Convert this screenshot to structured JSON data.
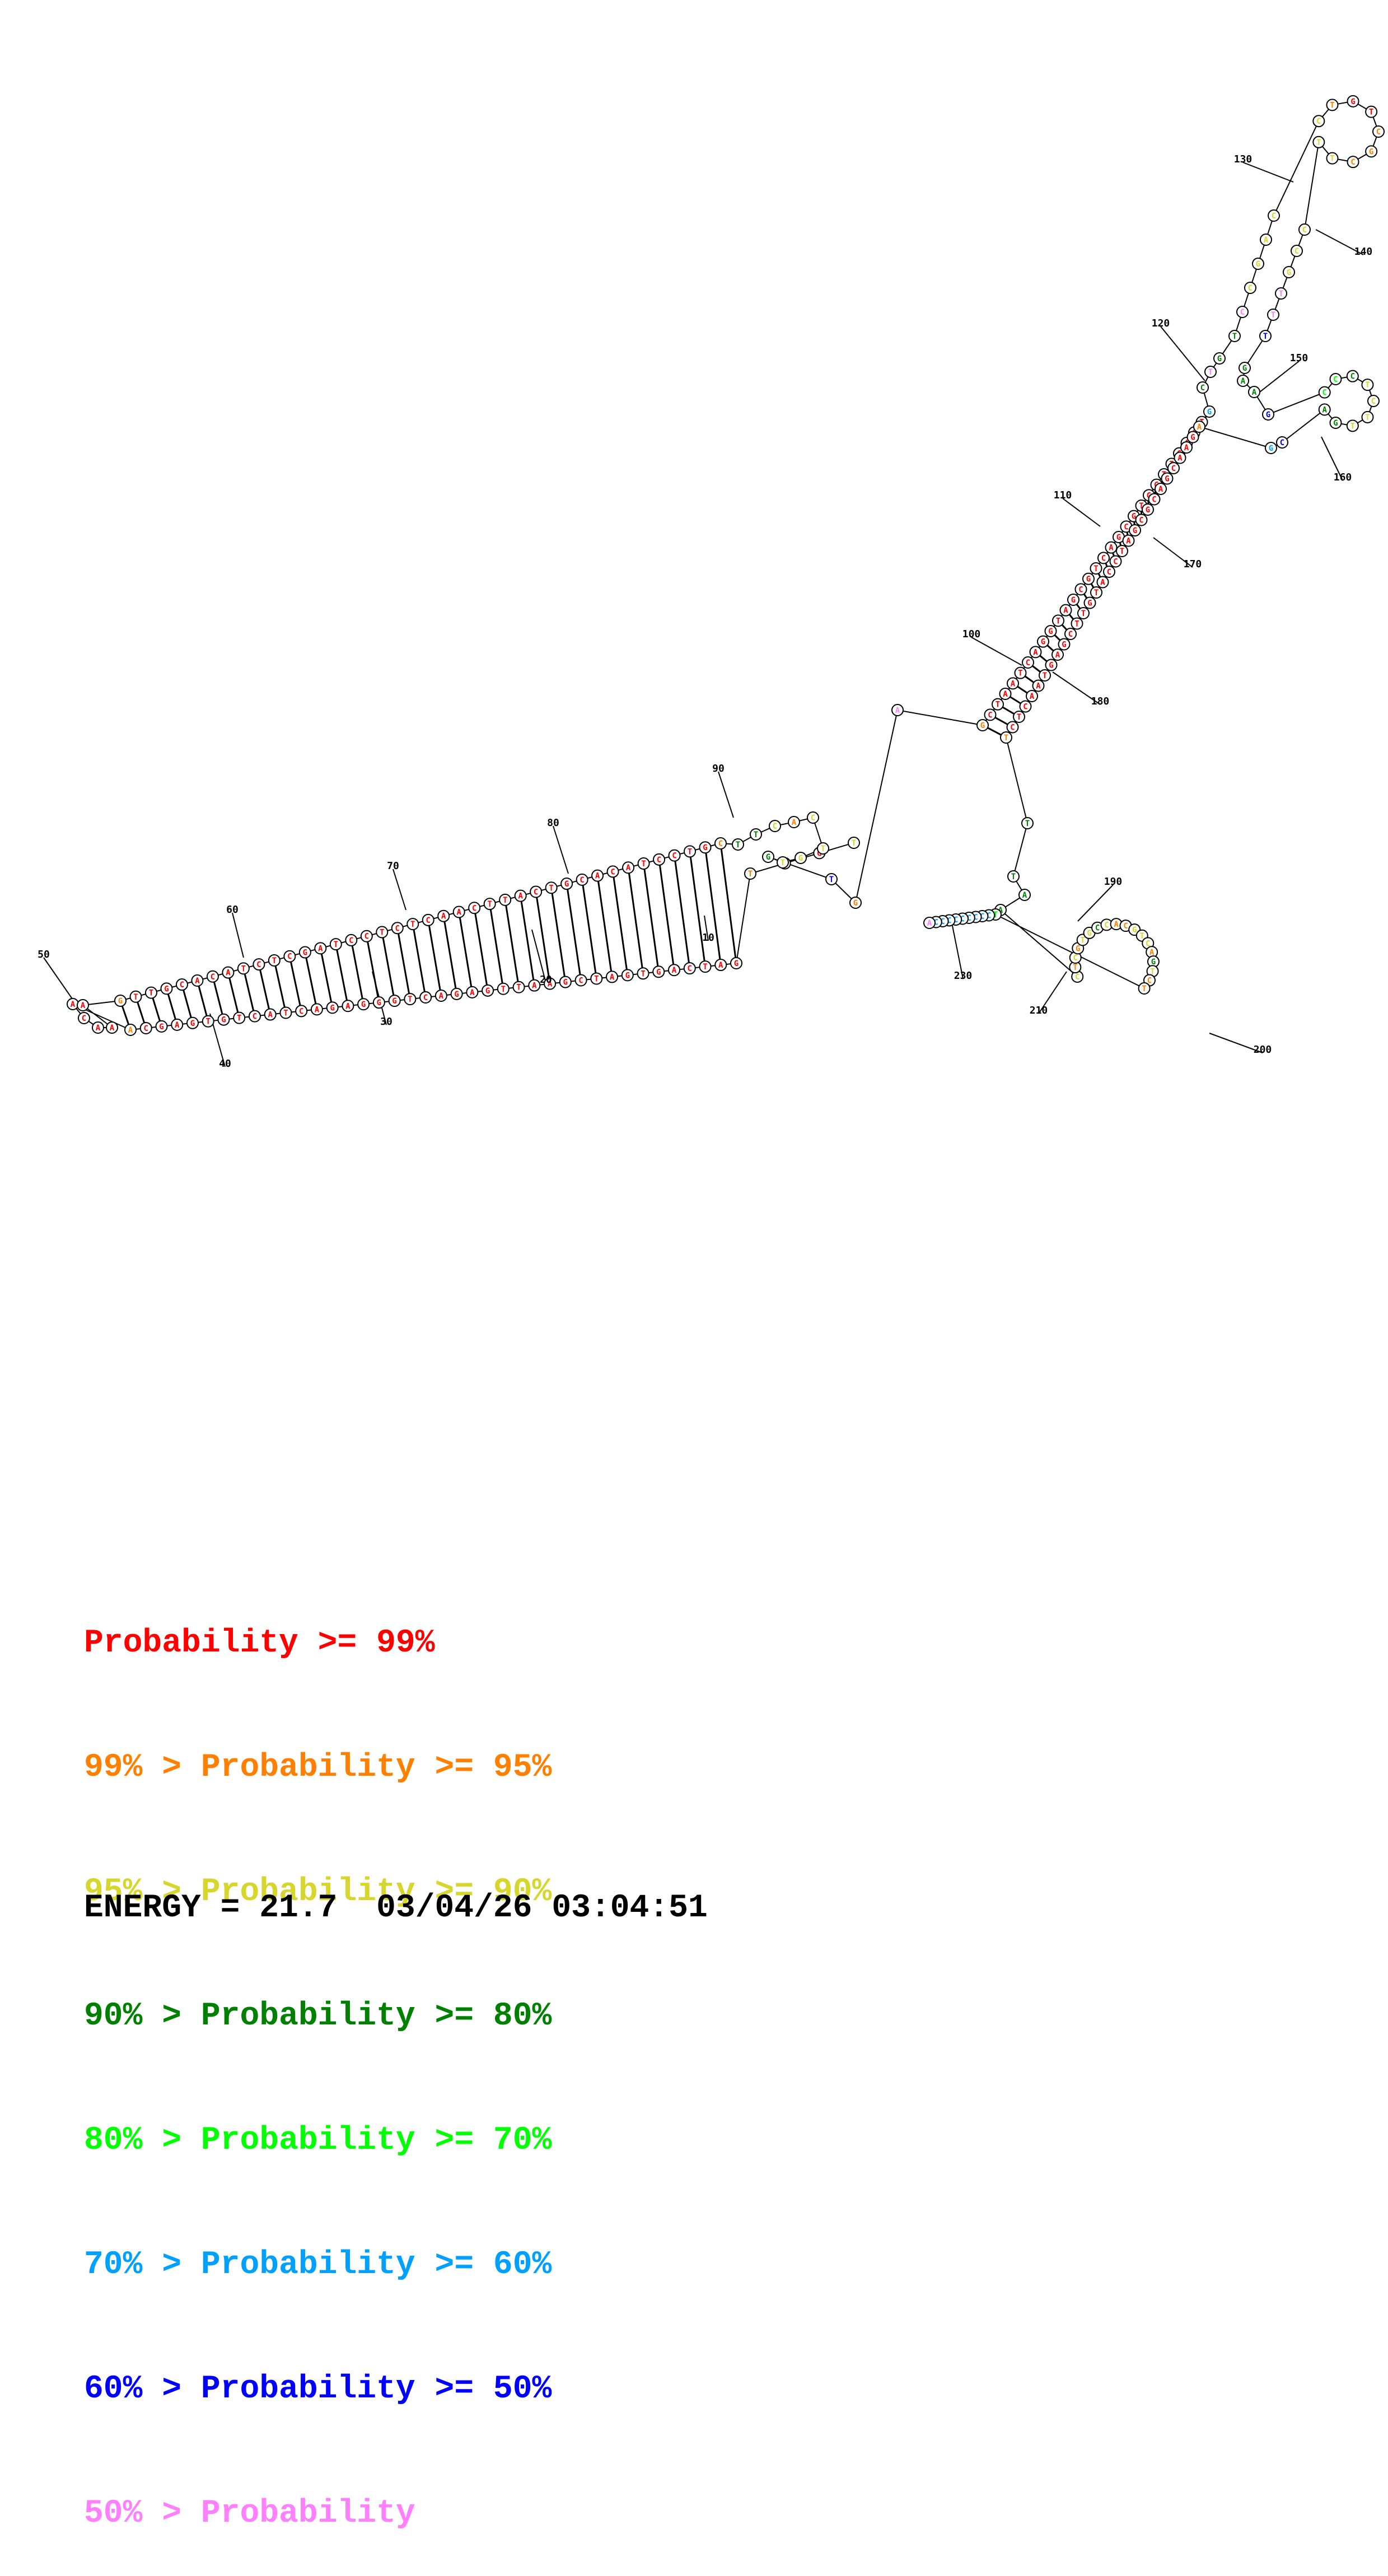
{
  "diagram": {
    "number_labels": [
      "10",
      "20",
      "30",
      "40",
      "50",
      "60",
      "70",
      "80",
      "90",
      "100",
      "110",
      "120",
      "130",
      "140",
      "150",
      "160",
      "170",
      "180",
      "190",
      "200",
      "210",
      "230"
    ]
  },
  "legend": {
    "rows": [
      {
        "prefix": "",
        "text": "Probability >= 99%",
        "color": "#ff0000"
      },
      {
        "prefix": "99% > ",
        "text": "Probability >= 95%",
        "color": "#ff8000"
      },
      {
        "prefix": "95% > ",
        "text": "Probability >= 90%",
        "color": "#d6d62c"
      },
      {
        "prefix": "90% > ",
        "text": "Probability >= 80%",
        "color": "#008000"
      },
      {
        "prefix": "80% > ",
        "text": "Probability >= 70%",
        "color": "#00ff00"
      },
      {
        "prefix": "70% > ",
        "text": "Probability >= 60%",
        "color": "#00a0ff"
      },
      {
        "prefix": "60% > ",
        "text": "Probability >= 50%",
        "color": "#0000ff"
      },
      {
        "prefix": "50% > ",
        "text": "Probability",
        "color": "#ff80ff"
      }
    ]
  },
  "footer": {
    "energy": "ENERGY = 21.7  03/04/26 03:04:51"
  }
}
